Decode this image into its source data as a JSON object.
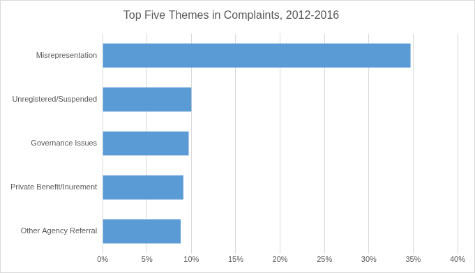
{
  "chart_data": {
    "type": "bar",
    "orientation": "horizontal",
    "title": "Top Five Themes in Complaints, 2012-2016",
    "categories": [
      "Misrepresentation",
      "Unregistered/Suspended",
      "Governance Issues",
      "Private Benefit/Inurement",
      "Other Agency Referral"
    ],
    "values": [
      34.7,
      10.0,
      9.7,
      9.1,
      8.8
    ],
    "color": "#5b9bd5",
    "xlim": [
      0,
      40
    ],
    "xticks": [
      {
        "value": 0,
        "label": "0%"
      },
      {
        "value": 5,
        "label": "5%"
      },
      {
        "value": 10,
        "label": "10%"
      },
      {
        "value": 15,
        "label": "15%"
      },
      {
        "value": 20,
        "label": "20%"
      },
      {
        "value": 25,
        "label": "25%"
      },
      {
        "value": 30,
        "label": "30%"
      },
      {
        "value": 35,
        "label": "35%"
      },
      {
        "value": 40,
        "label": "40%"
      }
    ],
    "grid": true
  }
}
